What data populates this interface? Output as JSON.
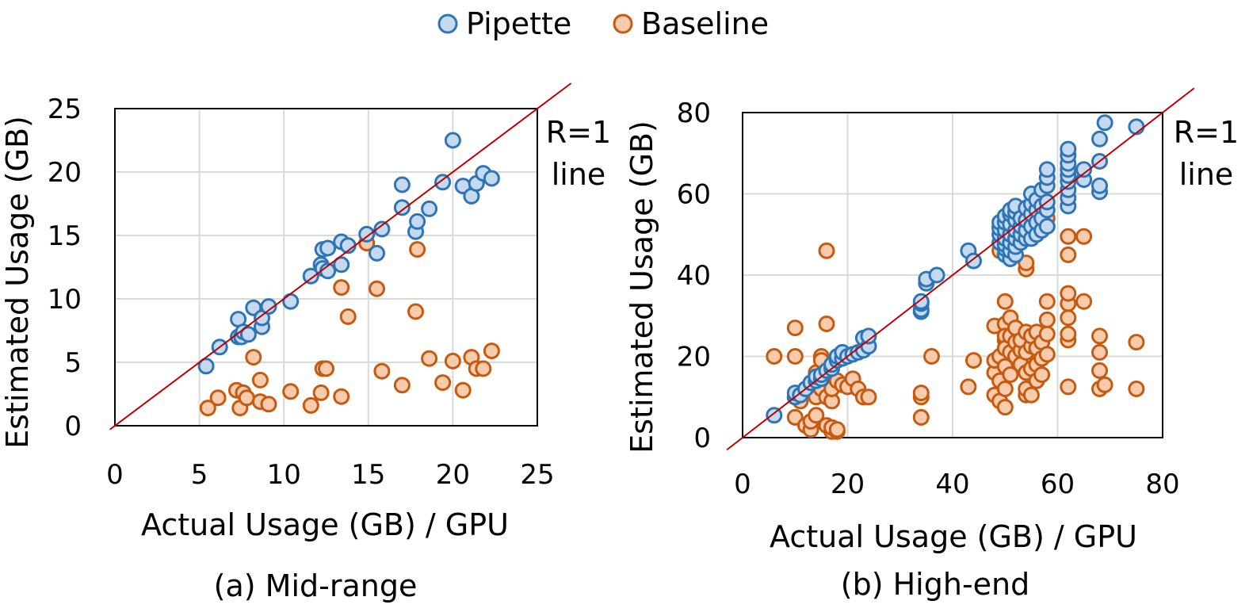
{
  "legend": [
    {
      "name": "Pipette",
      "color": "#c5d9f1",
      "stroke": "#2e75b6"
    },
    {
      "name": "Baseline",
      "color": "#f8cbad",
      "stroke": "#c55a11"
    }
  ],
  "chart_data": [
    {
      "type": "scatter",
      "caption": "(a) Mid-range",
      "xlabel": "Actual Usage (GB) / GPU",
      "ylabel": "Estimated Usage (GB)",
      "xlim": [
        0,
        25
      ],
      "ylim": [
        0,
        25
      ],
      "xticks": [
        "0",
        "5",
        "10",
        "15",
        "20",
        "25"
      ],
      "yticks": [
        "0",
        "5",
        "10",
        "15",
        "20",
        "25"
      ],
      "grid": true,
      "reference_line": {
        "label_1": "R=1",
        "label_2": "line"
      },
      "series": [
        {
          "name": "Pipette",
          "points": [
            [
              5.4,
              4.7
            ],
            [
              6.2,
              6.2
            ],
            [
              7.3,
              8.4
            ],
            [
              7.3,
              7.0
            ],
            [
              7.5,
              7.0
            ],
            [
              7.6,
              7.4
            ],
            [
              7.9,
              7.2
            ],
            [
              8.2,
              9.3
            ],
            [
              8.7,
              7.8
            ],
            [
              8.7,
              8.5
            ],
            [
              9.1,
              9.4
            ],
            [
              10.4,
              9.8
            ],
            [
              11.6,
              11.8
            ],
            [
              12.2,
              12.7
            ],
            [
              12.3,
              12.4
            ],
            [
              12.3,
              13.9
            ],
            [
              12.6,
              12.2
            ],
            [
              12.6,
              14.0
            ],
            [
              13.4,
              12.7
            ],
            [
              13.4,
              14.5
            ],
            [
              13.8,
              14.2
            ],
            [
              14.9,
              15.1
            ],
            [
              15.5,
              13.6
            ],
            [
              15.8,
              15.5
            ],
            [
              17.0,
              19.0
            ],
            [
              17.0,
              17.2
            ],
            [
              17.8,
              15.3
            ],
            [
              17.9,
              16.1
            ],
            [
              18.6,
              17.1
            ],
            [
              19.4,
              19.2
            ],
            [
              20.0,
              22.5
            ],
            [
              20.6,
              18.9
            ],
            [
              21.1,
              18.1
            ],
            [
              21.4,
              19.1
            ],
            [
              21.8,
              19.9
            ],
            [
              22.3,
              19.5
            ]
          ]
        },
        {
          "name": "Baseline",
          "points": [
            [
              5.5,
              1.4
            ],
            [
              6.1,
              2.2
            ],
            [
              7.2,
              2.8
            ],
            [
              7.4,
              1.4
            ],
            [
              7.6,
              2.6
            ],
            [
              7.8,
              2.2
            ],
            [
              8.2,
              5.4
            ],
            [
              8.6,
              1.9
            ],
            [
              8.6,
              3.6
            ],
            [
              9.1,
              1.7
            ],
            [
              10.4,
              2.7
            ],
            [
              11.6,
              1.6
            ],
            [
              12.2,
              2.6
            ],
            [
              12.3,
              4.5
            ],
            [
              12.5,
              4.5
            ],
            [
              13.4,
              10.9
            ],
            [
              13.4,
              2.3
            ],
            [
              13.8,
              8.6
            ],
            [
              14.9,
              14.4
            ],
            [
              15.5,
              10.8
            ],
            [
              15.8,
              4.3
            ],
            [
              17.0,
              3.2
            ],
            [
              17.8,
              9.0
            ],
            [
              17.9,
              13.9
            ],
            [
              18.6,
              5.3
            ],
            [
              19.4,
              3.4
            ],
            [
              20.0,
              5.1
            ],
            [
              20.6,
              2.8
            ],
            [
              21.1,
              5.4
            ],
            [
              21.4,
              4.5
            ],
            [
              21.8,
              4.5
            ],
            [
              22.3,
              5.9
            ]
          ]
        }
      ]
    },
    {
      "type": "scatter",
      "caption": "(b) High-end",
      "xlabel": "Actual Usage (GB) / GPU",
      "ylabel": "Estimated Usage (GB)",
      "xlim": [
        0,
        80
      ],
      "ylim": [
        0,
        80
      ],
      "xticks": [
        "0",
        "20",
        "40",
        "60",
        "80"
      ],
      "yticks": [
        "0",
        "20",
        "40",
        "60",
        "80"
      ],
      "grid": true,
      "reference_line": {
        "label_1": "R=1",
        "label_2": "line"
      },
      "series": [
        {
          "name": "Pipette",
          "points": [
            [
              6,
              5.5
            ],
            [
              10,
              10
            ],
            [
              10,
              11
            ],
            [
              11,
              10.5
            ],
            [
              12,
              12
            ],
            [
              13,
              13.5
            ],
            [
              14,
              14
            ],
            [
              14,
              15
            ],
            [
              15,
              14.5
            ],
            [
              15,
              15.5
            ],
            [
              16,
              16.5
            ],
            [
              17,
              17
            ],
            [
              17,
              18
            ],
            [
              18,
              19
            ],
            [
              18,
              20
            ],
            [
              19,
              19.5
            ],
            [
              19,
              21
            ],
            [
              20,
              20
            ],
            [
              21,
              20.5
            ],
            [
              22,
              21
            ],
            [
              23,
              21.5
            ],
            [
              23,
              24.5
            ],
            [
              24,
              22.5
            ],
            [
              24,
              25
            ],
            [
              34,
              31
            ],
            [
              34,
              31.5
            ],
            [
              34,
              33
            ],
            [
              34,
              33.5
            ],
            [
              35,
              38
            ],
            [
              35,
              39
            ],
            [
              37,
              40
            ],
            [
              43,
              46
            ],
            [
              44,
              43.5
            ],
            [
              49,
              48
            ],
            [
              49,
              50
            ],
            [
              49,
              51.5
            ],
            [
              49,
              53
            ],
            [
              50,
              45
            ],
            [
              50,
              46.5
            ],
            [
              50,
              47.5
            ],
            [
              50,
              49
            ],
            [
              50,
              51
            ],
            [
              50,
              53
            ],
            [
              50,
              54.5
            ],
            [
              51,
              44
            ],
            [
              51,
              46
            ],
            [
              51,
              48
            ],
            [
              51,
              50
            ],
            [
              51,
              52.5
            ],
            [
              51,
              55
            ],
            [
              51,
              56
            ],
            [
              52,
              45
            ],
            [
              52,
              47
            ],
            [
              52,
              49
            ],
            [
              52,
              51
            ],
            [
              52,
              53.5
            ],
            [
              52,
              55.5
            ],
            [
              52,
              57
            ],
            [
              53,
              48
            ],
            [
              53,
              50
            ],
            [
              53,
              52
            ],
            [
              53,
              54
            ],
            [
              54,
              49
            ],
            [
              54,
              51
            ],
            [
              54,
              53.5
            ],
            [
              54,
              56.5
            ],
            [
              55,
              49
            ],
            [
              55,
              52
            ],
            [
              55,
              55
            ],
            [
              55,
              57.5
            ],
            [
              55,
              60
            ],
            [
              56,
              50
            ],
            [
              56,
              53
            ],
            [
              56,
              56
            ],
            [
              56,
              58.5
            ],
            [
              57,
              51
            ],
            [
              57,
              54
            ],
            [
              57,
              57
            ],
            [
              57,
              61
            ],
            [
              58,
              52
            ],
            [
              58,
              56
            ],
            [
              58,
              58
            ],
            [
              58,
              62
            ],
            [
              58,
              64
            ],
            [
              58,
              66
            ],
            [
              62,
              57
            ],
            [
              62,
              59
            ],
            [
              62,
              61
            ],
            [
              62,
              63
            ],
            [
              62,
              64.5
            ],
            [
              62,
              66
            ],
            [
              62,
              67.5
            ],
            [
              62,
              69.5
            ],
            [
              62,
              71
            ],
            [
              65,
              63.5
            ],
            [
              65,
              66
            ],
            [
              68,
              60.5
            ],
            [
              68,
              62
            ],
            [
              68,
              68
            ],
            [
              68,
              73.5
            ],
            [
              69,
              77.5
            ],
            [
              75,
              76.5
            ]
          ]
        },
        {
          "name": "Baseline",
          "points": [
            [
              6,
              20
            ],
            [
              10,
              27
            ],
            [
              10,
              20
            ],
            [
              10,
              10
            ],
            [
              10,
              5
            ],
            [
              11,
              9
            ],
            [
              12,
              3
            ],
            [
              13,
              2
            ],
            [
              13,
              4
            ],
            [
              14,
              5.5
            ],
            [
              14,
              10
            ],
            [
              14,
              13
            ],
            [
              14,
              16
            ],
            [
              15,
              20
            ],
            [
              15,
              19
            ],
            [
              15,
              12
            ],
            [
              16,
              28
            ],
            [
              16,
              46
            ],
            [
              16,
              10
            ],
            [
              16,
              3
            ],
            [
              17,
              1.5
            ],
            [
              17,
              2.5
            ],
            [
              17,
              9
            ],
            [
              17,
              12
            ],
            [
              18,
              1.5
            ],
            [
              18,
              2
            ],
            [
              18,
              14
            ],
            [
              19,
              13
            ],
            [
              20,
              12.5
            ],
            [
              21,
              14.5
            ],
            [
              22,
              12
            ],
            [
              23,
              10
            ],
            [
              24,
              10
            ],
            [
              34,
              10
            ],
            [
              34,
              5
            ],
            [
              34,
              11
            ],
            [
              36,
              20
            ],
            [
              43,
              12.5
            ],
            [
              44,
              19
            ],
            [
              48,
              10.5
            ],
            [
              48,
              16
            ],
            [
              48,
              19
            ],
            [
              48,
              27.5
            ],
            [
              49,
              14
            ],
            [
              49,
              46
            ],
            [
              49,
              52
            ],
            [
              49,
              9
            ],
            [
              49,
              20
            ],
            [
              50,
              24
            ],
            [
              50,
              33.5
            ],
            [
              50,
              28
            ],
            [
              50,
              25
            ],
            [
              50,
              22
            ],
            [
              50,
              17.5
            ],
            [
              50,
              12
            ],
            [
              50,
              7.5
            ],
            [
              51,
              15.5
            ],
            [
              51,
              21
            ],
            [
              51,
              25
            ],
            [
              51,
              29.5
            ],
            [
              52,
              20
            ],
            [
              52,
              23.5
            ],
            [
              52,
              27
            ],
            [
              53,
              18
            ],
            [
              53,
              21.5
            ],
            [
              53,
              24
            ],
            [
              54,
              10.5
            ],
            [
              54,
              12
            ],
            [
              54,
              16
            ],
            [
              54,
              21
            ],
            [
              54,
              26
            ],
            [
              54,
              41.5
            ],
            [
              54,
              43
            ],
            [
              55,
              10.5
            ],
            [
              55,
              17
            ],
            [
              55,
              22.5
            ],
            [
              55,
              25
            ],
            [
              56,
              14
            ],
            [
              56,
              18
            ],
            [
              56,
              22
            ],
            [
              56,
              26
            ],
            [
              57,
              15.5
            ],
            [
              57,
              19.5
            ],
            [
              57,
              23.5
            ],
            [
              58,
              20.5
            ],
            [
              58,
              25.5
            ],
            [
              58,
              29
            ],
            [
              58,
              33.5
            ],
            [
              58,
              52
            ],
            [
              58,
              54
            ],
            [
              62,
              12.5
            ],
            [
              62,
              24
            ],
            [
              62,
              25.5
            ],
            [
              62,
              29.5
            ],
            [
              62,
              33
            ],
            [
              62,
              35.5
            ],
            [
              62,
              45
            ],
            [
              62,
              49.5
            ],
            [
              65,
              33.5
            ],
            [
              65,
              49.5
            ],
            [
              68,
              12
            ],
            [
              68,
              16.5
            ],
            [
              68,
              21
            ],
            [
              68,
              25
            ],
            [
              69,
              13
            ],
            [
              75,
              12
            ],
            [
              75,
              23.5
            ]
          ]
        }
      ]
    }
  ]
}
